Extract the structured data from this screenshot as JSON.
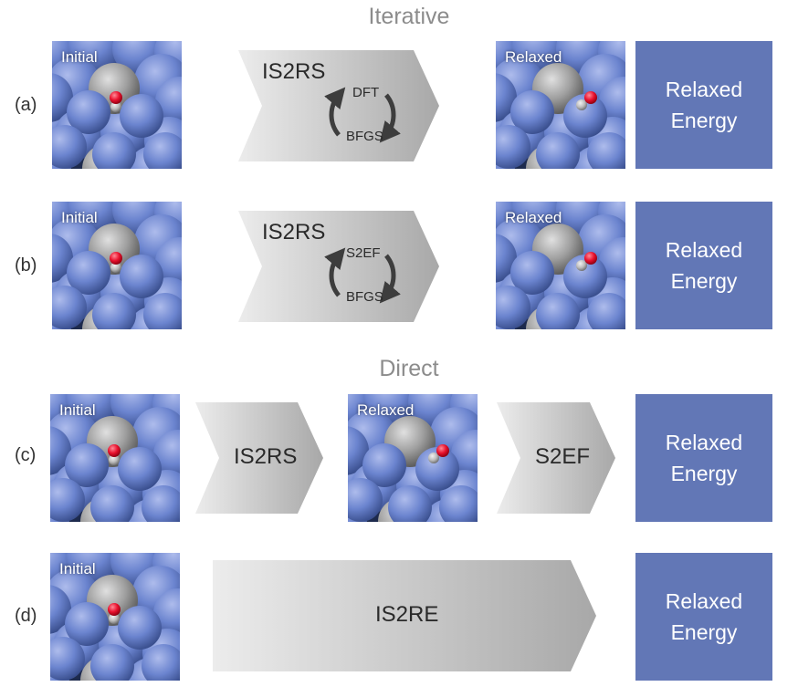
{
  "sections": {
    "iterative": "Iterative",
    "direct": "Direct"
  },
  "rows": {
    "a": {
      "label": "(a)",
      "initial": "Initial",
      "process": "IS2RS",
      "loop_top": "DFT",
      "loop_bottom": "BFGS",
      "relaxed": "Relaxed",
      "energy_line1": "Relaxed",
      "energy_line2": "Energy"
    },
    "b": {
      "label": "(b)",
      "initial": "Initial",
      "process": "IS2RS",
      "loop_top": "S2EF",
      "loop_bottom": "BFGS",
      "relaxed": "Relaxed",
      "energy_line1": "Relaxed",
      "energy_line2": "Energy"
    },
    "c": {
      "label": "(c)",
      "initial": "Initial",
      "process1": "IS2RS",
      "relaxed": "Relaxed",
      "process2": "S2EF",
      "energy_line1": "Relaxed",
      "energy_line2": "Energy"
    },
    "d": {
      "label": "(d)",
      "initial": "Initial",
      "process": "IS2RE",
      "energy_line1": "Relaxed",
      "energy_line2": "Energy"
    }
  },
  "colors": {
    "energy_box": "#6277b6",
    "atom_blue": "#6b84cf",
    "atom_gray": "#9e9e9e",
    "oxygen": "#e8102c",
    "hydrogen": "#bdbdbd",
    "arrow_light": "#ececec",
    "arrow_dark": "#a8a8a8"
  }
}
